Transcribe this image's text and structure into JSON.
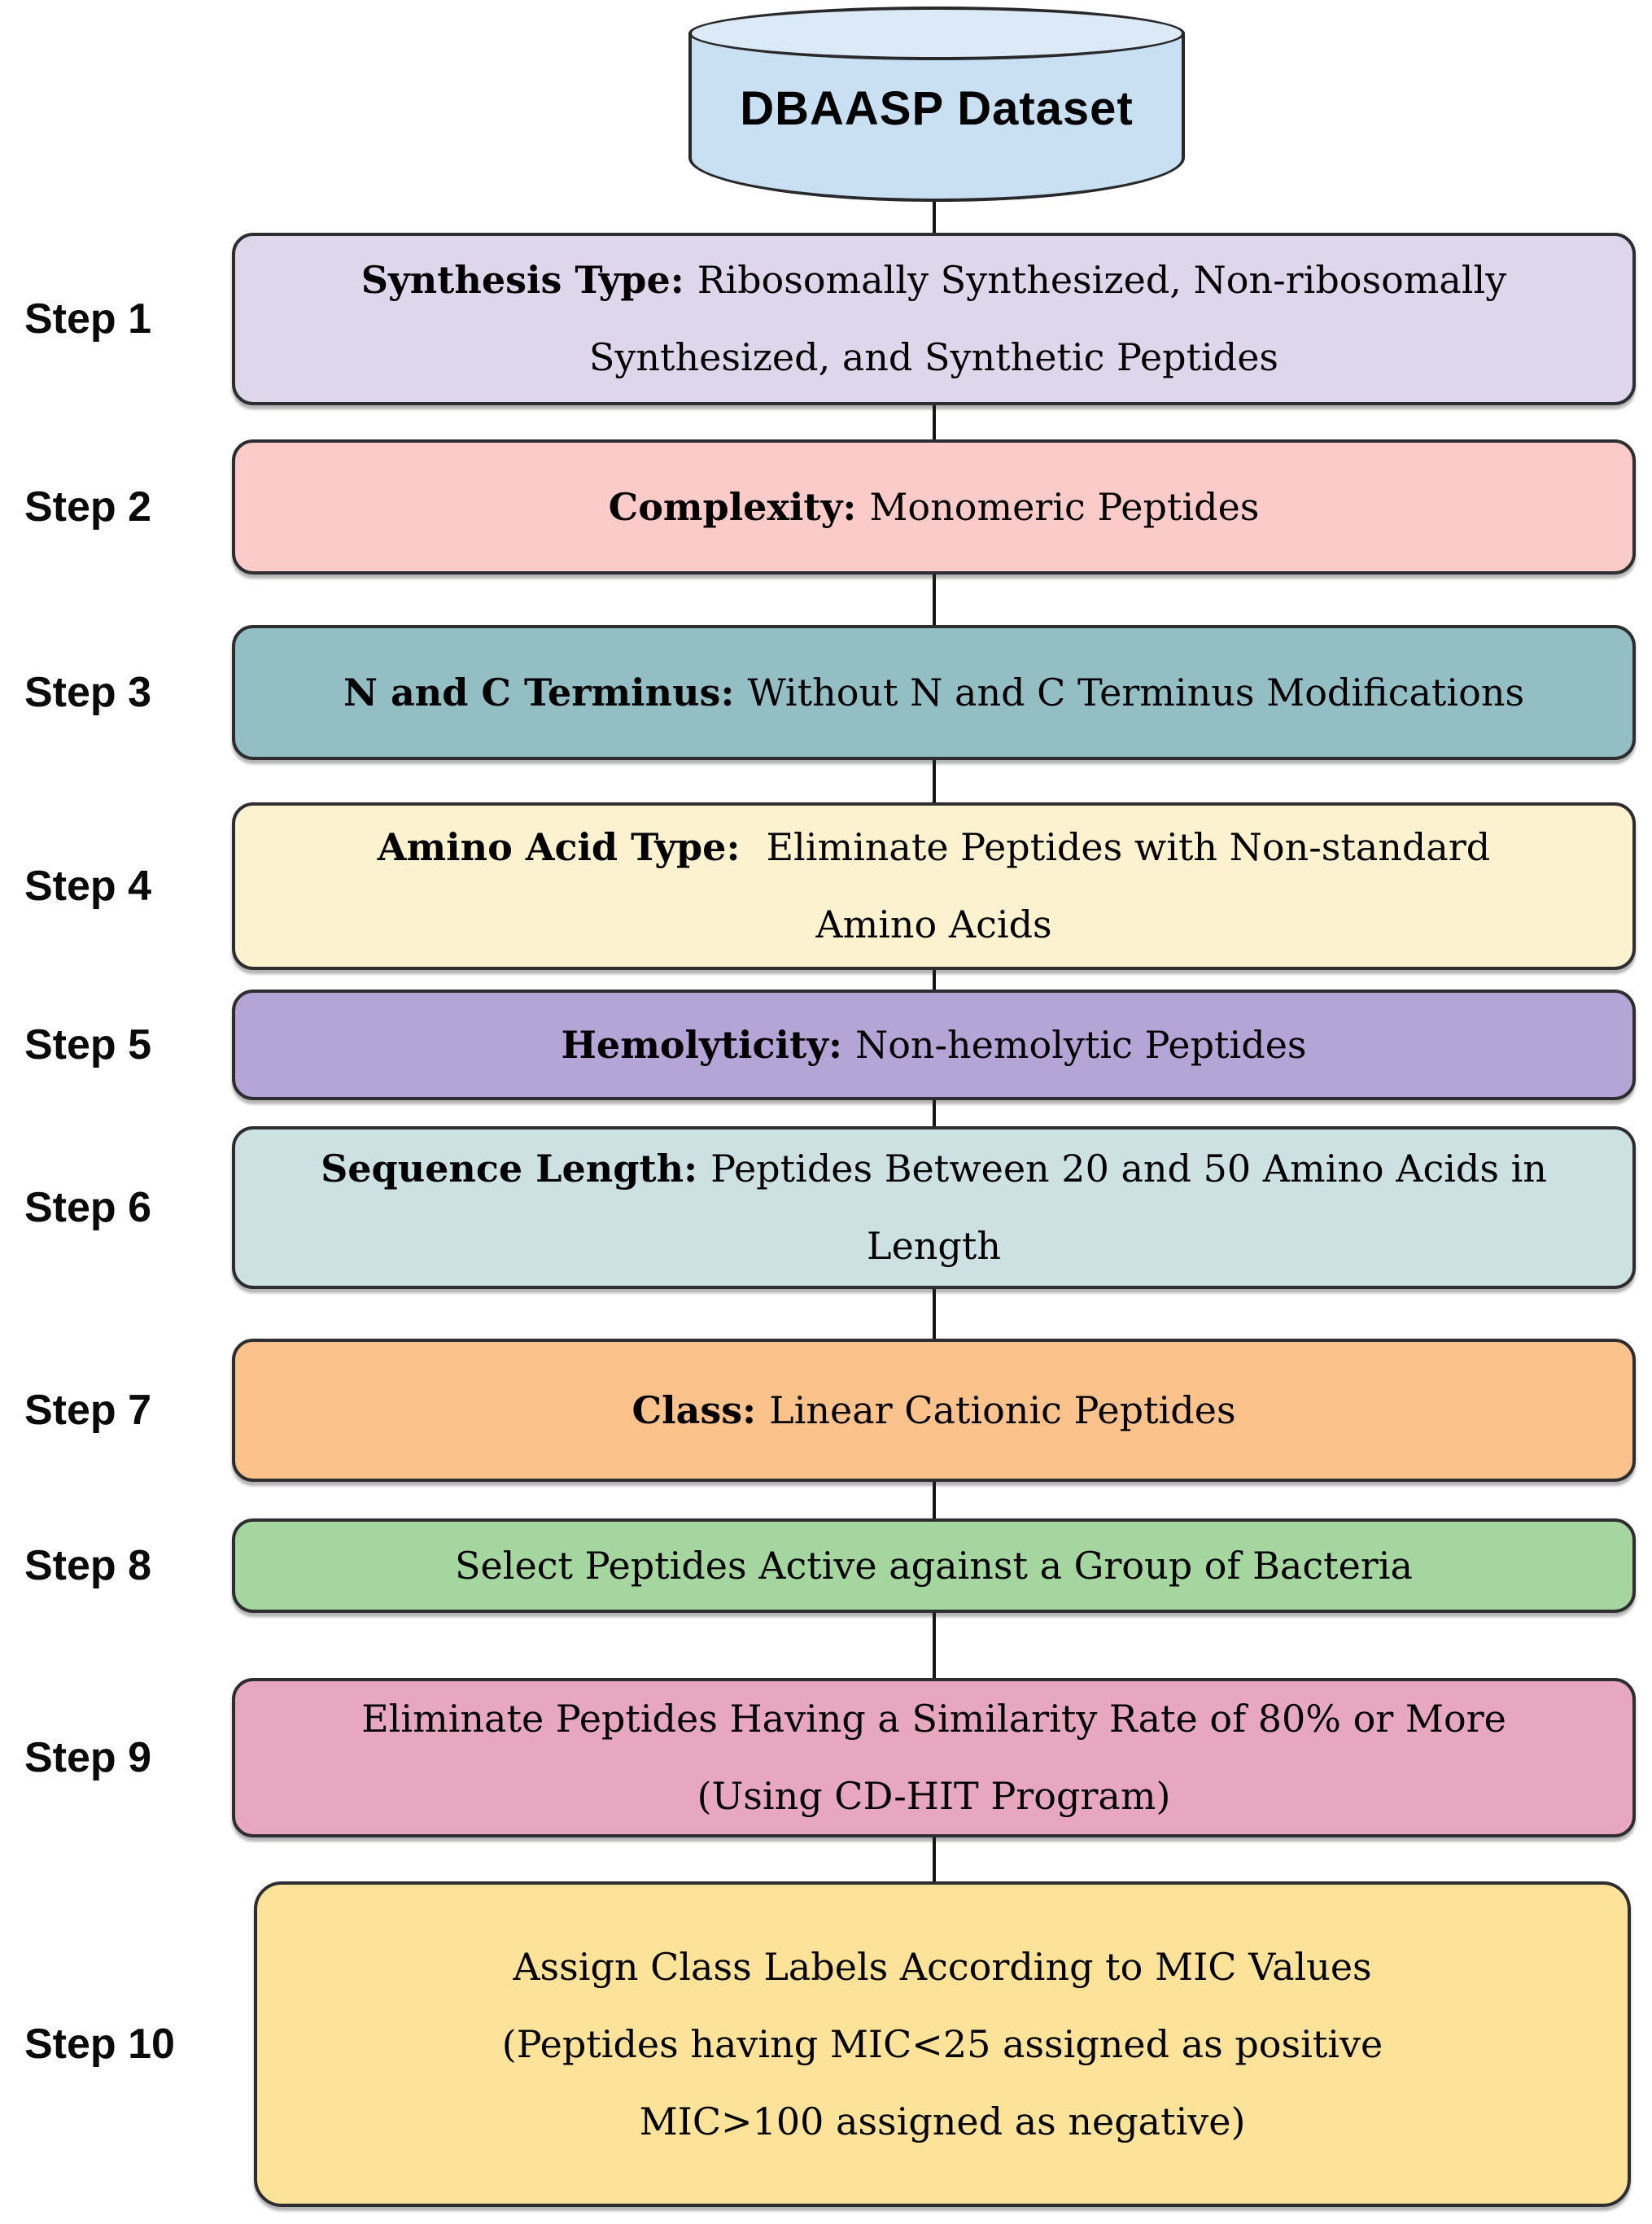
{
  "diagram": {
    "dataset": {
      "label": "DBAASP Dataset",
      "fill": "#c9dff2",
      "top_fill": "#dce9f7"
    },
    "colors": {
      "border": "#2e2e31",
      "connector": "#141414",
      "background": "#ffffff",
      "text": "#000000"
    },
    "steps": [
      {
        "step": "Step 1",
        "prefix": "Synthesis Type: ",
        "text": "Ribosomally Synthesized, Non-ribosomally\nSynthesized, and Synthetic Peptides",
        "color": "#ded7eb"
      },
      {
        "step": "Step 2",
        "prefix": "Complexity: ",
        "text": "Monomeric Peptides",
        "color": "#fbcbca"
      },
      {
        "step": "Step 3",
        "prefix": "N and C Terminus: ",
        "text": "Without N and C Terminus Modifications",
        "color": "#93bfc4"
      },
      {
        "step": "Step 4",
        "prefix": "Amino Acid Type:  ",
        "text": "Eliminate Peptides with Non-standard\nAmino Acids",
        "color": "#fcf2d0"
      },
      {
        "step": "Step 5",
        "prefix": "Hemolyticity: ",
        "text": "Non-hemolytic Peptides",
        "color": "#b5a5d6"
      },
      {
        "step": "Step 6",
        "prefix": "Sequence Length: ",
        "text": "Peptides Between 20 and 50 Amino Acids in\nLength",
        "color": "#cde1e3"
      },
      {
        "step": "Step 7",
        "prefix": "Class: ",
        "text": "Linear Cationic Peptides",
        "color": "#fbc28b"
      },
      {
        "step": "Step 8",
        "prefix": "",
        "text": "Select Peptides Active against a Group of Bacteria",
        "color": "#a5d6a0"
      },
      {
        "step": "Step 9",
        "prefix": "",
        "text": "Eliminate Peptides Having a Similarity Rate of 80% or More\n(Using CD-HIT Program)",
        "color": "#e7a7bf"
      },
      {
        "step": "Step 10",
        "prefix": "",
        "text": "Assign Class Labels According to MIC Values\n(Peptides having MIC<25 assigned as positive\nMIC>100 assigned as negative)",
        "color": "#fde299"
      }
    ]
  }
}
